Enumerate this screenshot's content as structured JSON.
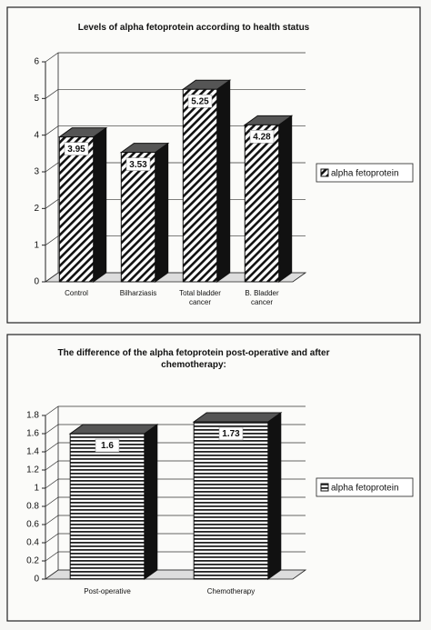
{
  "chart_data": [
    {
      "type": "bar",
      "title": "Levels of alpha fetoprotein according to health status",
      "categories": [
        "Control",
        "Bilharziasis",
        "Total bladder cancer",
        "B. Bladder cancer"
      ],
      "series": [
        {
          "name": "alpha fetoprotein",
          "color": "#111111",
          "values": [
            3.95,
            3.53,
            5.25,
            4.28
          ]
        }
      ],
      "ylim": [
        0,
        6
      ],
      "yticks": [
        0,
        1,
        2,
        3,
        4,
        5,
        6
      ],
      "grid": true,
      "legend": "right"
    },
    {
      "type": "bar",
      "title": "The difference of the alpha fetoprotein post-operative and after chemotherapy:",
      "categories": [
        "Post-operative",
        "Chemotherapy"
      ],
      "series": [
        {
          "name": "alpha fetoprotein",
          "color": "#111111",
          "values": [
            1.6,
            1.73
          ]
        }
      ],
      "ylim": [
        0,
        1.8
      ],
      "yticks": [
        0,
        0.2,
        0.4,
        0.6,
        0.8,
        1,
        1.2,
        1.4,
        1.6,
        1.8
      ],
      "grid": true,
      "legend": "right"
    }
  ]
}
